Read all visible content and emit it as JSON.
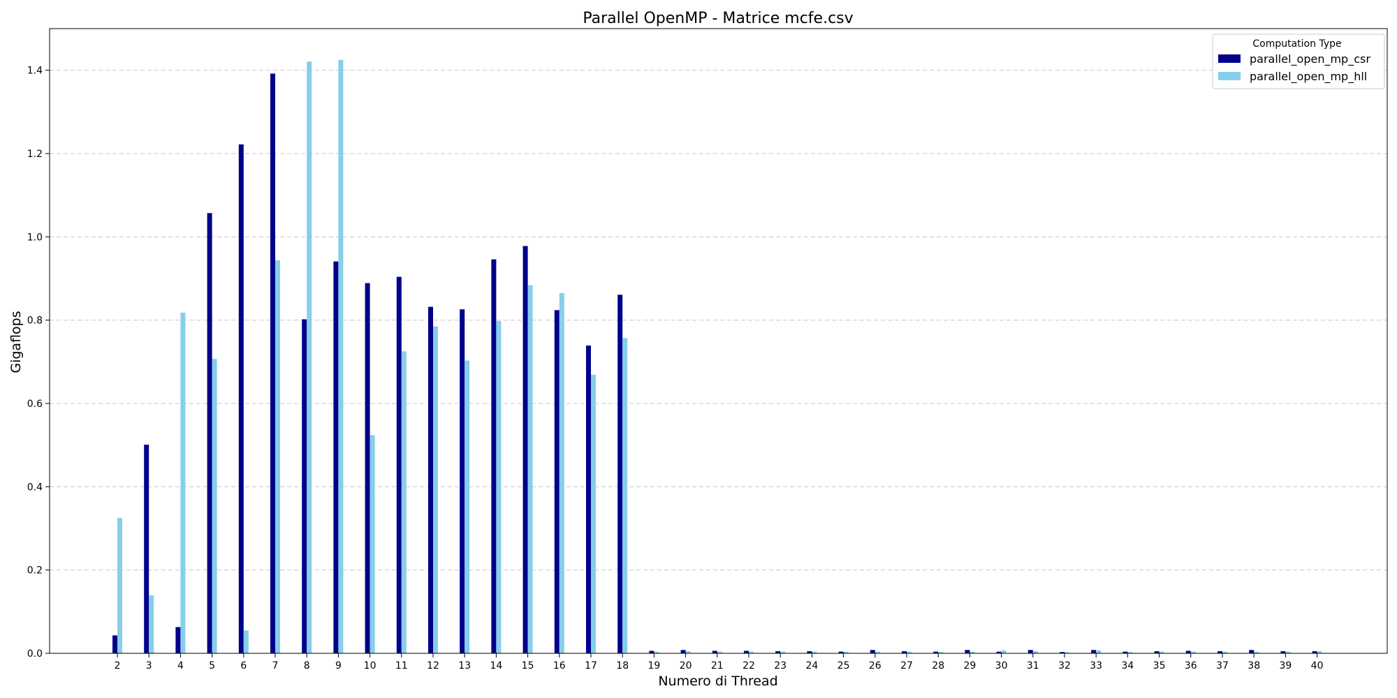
{
  "chart_data": {
    "type": "bar",
    "title": "Parallel OpenMP - Matrice mcfe.csv",
    "xlabel": "Numero di Thread",
    "ylabel": "Gigaflops",
    "ylim": [
      0,
      1.5
    ],
    "yticks": [
      "0.0",
      "0.2",
      "0.4",
      "0.6",
      "0.8",
      "1.0",
      "1.2",
      "1.4"
    ],
    "grid": "y-dashed",
    "legend": {
      "title": "Computation Type",
      "placement": "top-right"
    },
    "categories": [
      "2",
      "3",
      "4",
      "5",
      "6",
      "7",
      "8",
      "9",
      "10",
      "11",
      "12",
      "13",
      "14",
      "15",
      "16",
      "17",
      "18",
      "19",
      "20",
      "21",
      "22",
      "23",
      "24",
      "25",
      "26",
      "27",
      "28",
      "29",
      "30",
      "31",
      "32",
      "33",
      "34",
      "35",
      "36",
      "37",
      "38",
      "39",
      "40"
    ],
    "series": [
      {
        "name": "parallel_open_mp_csr",
        "color": "#00008b",
        "values": [
          0.043,
          0.501,
          0.063,
          1.057,
          1.222,
          1.392,
          0.802,
          0.941,
          0.889,
          0.904,
          0.832,
          0.826,
          0.946,
          0.978,
          0.824,
          0.739,
          0.861,
          0.006,
          0.008,
          0.006,
          0.006,
          0.005,
          0.005,
          0.004,
          0.008,
          0.005,
          0.004,
          0.008,
          0.004,
          0.008,
          0.003,
          0.008,
          0.004,
          0.005,
          0.006,
          0.005,
          0.008,
          0.005,
          0.005
        ]
      },
      {
        "name": "parallel_open_mp_hll",
        "color": "#87ceeb",
        "values": [
          0.325,
          0.139,
          0.818,
          0.707,
          0.055,
          0.944,
          1.421,
          1.425,
          0.524,
          0.725,
          0.785,
          0.703,
          0.798,
          0.884,
          0.865,
          0.669,
          0.757,
          0.004,
          0.005,
          0.004,
          0.004,
          0.004,
          0.004,
          0.004,
          0.004,
          0.004,
          0.003,
          0.004,
          0.007,
          0.005,
          0.003,
          0.007,
          0.003,
          0.004,
          0.004,
          0.004,
          0.004,
          0.004,
          0.005
        ]
      }
    ]
  }
}
